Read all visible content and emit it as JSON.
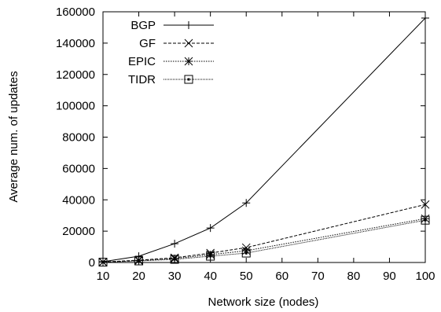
{
  "chart_data": {
    "type": "line",
    "title": "",
    "xlabel": "Network size (nodes)",
    "ylabel": "Average num. of updates",
    "x": [
      10,
      20,
      30,
      40,
      50,
      100
    ],
    "xlim": [
      10,
      100
    ],
    "ylim": [
      0,
      160000
    ],
    "xticks": [
      "10",
      "20",
      "30",
      "40",
      "50",
      "60",
      "70",
      "80",
      "90",
      "100"
    ],
    "yticks": [
      "0",
      "20000",
      "40000",
      "60000",
      "80000",
      "100000",
      "120000",
      "140000",
      "160000"
    ],
    "grid": false,
    "legend_position": "top-left",
    "series": [
      {
        "name": "BGP",
        "marker": "plus",
        "dash": "solid",
        "values": [
          500,
          4000,
          12000,
          22000,
          38000,
          156000
        ]
      },
      {
        "name": "GF",
        "marker": "cross",
        "dash": "dashed",
        "values": [
          300,
          1500,
          3000,
          6000,
          9500,
          37000
        ]
      },
      {
        "name": "EPIC",
        "marker": "asterisk",
        "dash": "dotted",
        "values": [
          250,
          1200,
          2500,
          5000,
          7500,
          28000
        ]
      },
      {
        "name": "TIDR",
        "marker": "square",
        "dash": "fine",
        "values": [
          200,
          1000,
          2000,
          4000,
          6000,
          27000
        ]
      }
    ]
  }
}
